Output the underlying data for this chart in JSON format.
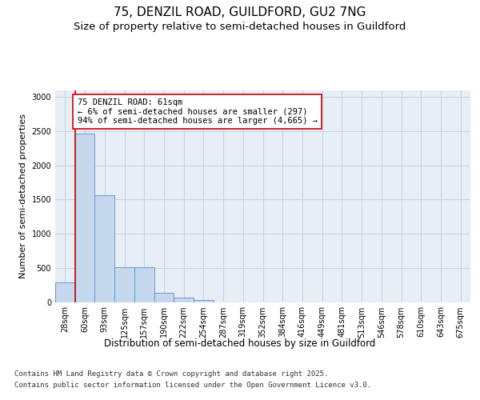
{
  "title_line1": "75, DENZIL ROAD, GUILDFORD, GU2 7NG",
  "title_line2": "Size of property relative to semi-detached houses in Guildford",
  "xlabel": "Distribution of semi-detached houses by size in Guildford",
  "ylabel": "Number of semi-detached properties",
  "categories": [
    "28sqm",
    "60sqm",
    "93sqm",
    "125sqm",
    "157sqm",
    "190sqm",
    "222sqm",
    "254sqm",
    "287sqm",
    "319sqm",
    "352sqm",
    "384sqm",
    "416sqm",
    "449sqm",
    "481sqm",
    "513sqm",
    "546sqm",
    "578sqm",
    "610sqm",
    "643sqm",
    "675sqm"
  ],
  "values": [
    290,
    2460,
    1560,
    510,
    510,
    140,
    70,
    30,
    0,
    0,
    0,
    0,
    0,
    0,
    0,
    0,
    0,
    0,
    0,
    0,
    0
  ],
  "bar_color": "#c5d8ed",
  "bar_edge_color": "#5b8dc8",
  "grid_color": "#c8d4e4",
  "background_color": "#e8eef6",
  "vline_color": "#cc0000",
  "annotation_text": "75 DENZIL ROAD: 61sqm\n← 6% of semi-detached houses are smaller (297)\n94% of semi-detached houses are larger (4,665) →",
  "ylim": [
    0,
    3100
  ],
  "yticks": [
    0,
    500,
    1000,
    1500,
    2000,
    2500,
    3000
  ],
  "footer_line1": "Contains HM Land Registry data © Crown copyright and database right 2025.",
  "footer_line2": "Contains public sector information licensed under the Open Government Licence v3.0.",
  "title_fontsize": 11,
  "subtitle_fontsize": 9.5,
  "ylabel_fontsize": 8,
  "xlabel_fontsize": 8.5,
  "tick_fontsize": 7,
  "annotation_fontsize": 7.5,
  "footer_fontsize": 6.5
}
